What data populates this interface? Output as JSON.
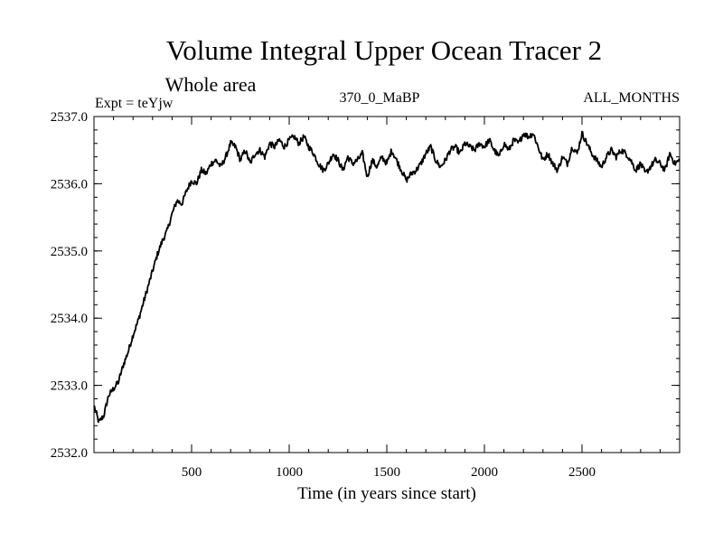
{
  "chart_data": {
    "type": "line",
    "title": "Volume Integral Upper Ocean Tracer 2",
    "subtitle": "Whole area",
    "expt_label": "Expt = teYjw",
    "period_label": "370_0_MaBP",
    "months_label": "ALL_MONTHS",
    "xlabel": "Time (in years since start)",
    "ylabel": "",
    "xlim": [
      0,
      3000
    ],
    "ylim": [
      2532.0,
      2537.0
    ],
    "x_ticks": [
      500,
      1000,
      1500,
      2000,
      2500
    ],
    "x_tick_labels": [
      "500",
      "1000",
      "1500",
      "2000",
      "2500"
    ],
    "y_ticks": [
      2532.0,
      2533.0,
      2534.0,
      2535.0,
      2536.0,
      2537.0
    ],
    "y_tick_labels": [
      "2532.0",
      "2533.0",
      "2534.0",
      "2535.0",
      "2536.0",
      "2537.0"
    ],
    "series": [
      {
        "name": "Upper Ocean Tracer 2",
        "x": [
          0,
          25,
          50,
          75,
          100,
          125,
          150,
          175,
          200,
          225,
          250,
          275,
          300,
          325,
          350,
          375,
          400,
          425,
          450,
          475,
          500,
          525,
          550,
          575,
          600,
          625,
          650,
          675,
          700,
          725,
          750,
          775,
          800,
          825,
          850,
          875,
          900,
          925,
          950,
          975,
          1000,
          1025,
          1050,
          1075,
          1100,
          1125,
          1150,
          1175,
          1200,
          1225,
          1250,
          1275,
          1300,
          1325,
          1350,
          1375,
          1400,
          1425,
          1450,
          1475,
          1500,
          1525,
          1550,
          1575,
          1600,
          1625,
          1650,
          1675,
          1700,
          1725,
          1750,
          1775,
          1800,
          1825,
          1850,
          1875,
          1900,
          1925,
          1950,
          1975,
          2000,
          2025,
          2050,
          2075,
          2100,
          2125,
          2150,
          2175,
          2200,
          2225,
          2250,
          2275,
          2300,
          2325,
          2350,
          2375,
          2400,
          2425,
          2450,
          2475,
          2500,
          2525,
          2550,
          2575,
          2600,
          2625,
          2650,
          2675,
          2700,
          2725,
          2750,
          2775,
          2800,
          2825,
          2850,
          2875,
          2900,
          2925,
          2950,
          2975,
          3000
        ],
        "values": [
          2532.7,
          2532.45,
          2532.55,
          2532.85,
          2532.95,
          2533.05,
          2533.3,
          2533.5,
          2533.75,
          2533.95,
          2534.2,
          2534.45,
          2534.7,
          2534.95,
          2535.15,
          2535.3,
          2535.55,
          2535.75,
          2535.7,
          2535.9,
          2536.05,
          2536.0,
          2536.2,
          2536.15,
          2536.3,
          2536.35,
          2536.25,
          2536.4,
          2536.6,
          2536.55,
          2536.35,
          2536.5,
          2536.3,
          2536.45,
          2536.5,
          2536.4,
          2536.6,
          2536.55,
          2536.65,
          2536.55,
          2536.65,
          2536.7,
          2536.6,
          2536.7,
          2536.55,
          2536.45,
          2536.3,
          2536.2,
          2536.3,
          2536.45,
          2536.35,
          2536.2,
          2536.4,
          2536.3,
          2536.35,
          2536.45,
          2536.1,
          2536.35,
          2536.25,
          2536.4,
          2536.3,
          2536.5,
          2536.35,
          2536.2,
          2536.05,
          2536.15,
          2536.2,
          2536.3,
          2536.45,
          2536.55,
          2536.35,
          2536.25,
          2536.35,
          2536.5,
          2536.55,
          2536.45,
          2536.6,
          2536.55,
          2536.5,
          2536.6,
          2536.55,
          2536.65,
          2536.5,
          2536.4,
          2536.6,
          2536.5,
          2536.65,
          2536.6,
          2536.75,
          2536.7,
          2536.75,
          2536.55,
          2536.35,
          2536.45,
          2536.3,
          2536.2,
          2536.4,
          2536.3,
          2536.55,
          2536.45,
          2536.75,
          2536.6,
          2536.45,
          2536.35,
          2536.25,
          2536.4,
          2536.5,
          2536.4,
          2536.5,
          2536.45,
          2536.35,
          2536.2,
          2536.3,
          2536.15,
          2536.25,
          2536.35,
          2536.3,
          2536.2,
          2536.45,
          2536.3,
          2536.35
        ]
      }
    ]
  }
}
